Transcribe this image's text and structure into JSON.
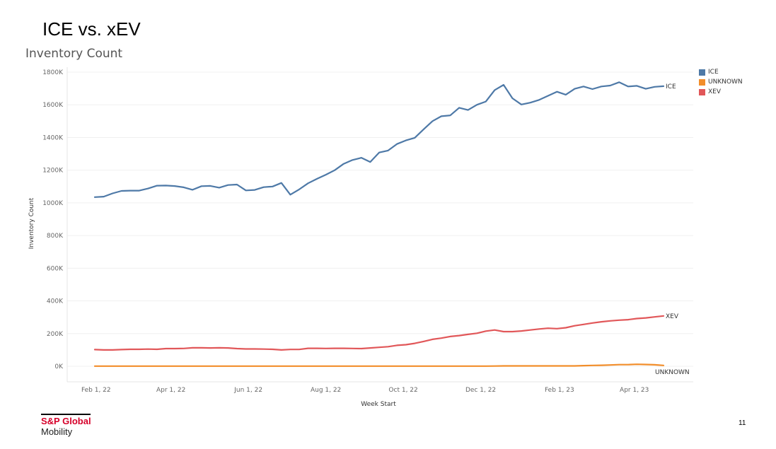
{
  "slide": {
    "title": "ICE vs. xEV",
    "page_number": "11",
    "brand_name": "S&P Global",
    "brand_sub": "Mobility"
  },
  "chart_data": {
    "type": "line",
    "title": "Inventory Count",
    "xlabel": "Week Start",
    "ylabel": "Inventory Count",
    "ylim": [
      0,
      1800000
    ],
    "y_ticks": [
      0,
      200000,
      400000,
      600000,
      800000,
      1000000,
      1200000,
      1400000,
      1600000,
      1800000
    ],
    "y_tick_labels": [
      "0K",
      "200K",
      "400K",
      "600K",
      "800K",
      "1000K",
      "1200K",
      "1400K",
      "1600K",
      "1800K"
    ],
    "x_tick_labels": [
      "Feb 1, 22",
      "Apr 1, 22",
      "Jun 1, 22",
      "Aug 1, 22",
      "Oct 1, 22",
      "Dec 1, 22",
      "Feb 1, 23",
      "Apr 1, 23"
    ],
    "grid": true,
    "legend_position": "right",
    "x": [
      "2022-01-31",
      "2022-02-07",
      "2022-02-14",
      "2022-02-21",
      "2022-02-28",
      "2022-03-07",
      "2022-03-14",
      "2022-03-21",
      "2022-03-28",
      "2022-04-04",
      "2022-04-11",
      "2022-04-18",
      "2022-04-25",
      "2022-05-02",
      "2022-05-09",
      "2022-05-16",
      "2022-05-23",
      "2022-05-30",
      "2022-06-06",
      "2022-06-13",
      "2022-06-20",
      "2022-06-27",
      "2022-07-04",
      "2022-07-11",
      "2022-07-18",
      "2022-07-25",
      "2022-08-01",
      "2022-08-08",
      "2022-08-15",
      "2022-08-22",
      "2022-08-29",
      "2022-09-05",
      "2022-09-12",
      "2022-09-19",
      "2022-09-26",
      "2022-10-03",
      "2022-10-10",
      "2022-10-17",
      "2022-10-24",
      "2022-10-31",
      "2022-11-07",
      "2022-11-14",
      "2022-11-21",
      "2022-11-28",
      "2022-12-05",
      "2022-12-12",
      "2022-12-19",
      "2022-12-26",
      "2023-01-02",
      "2023-01-09",
      "2023-01-16",
      "2023-01-23",
      "2023-01-30",
      "2023-02-06",
      "2023-02-13",
      "2023-02-20",
      "2023-02-27",
      "2023-03-06",
      "2023-03-13",
      "2023-03-20",
      "2023-03-27",
      "2023-04-03",
      "2023-04-10",
      "2023-04-17",
      "2023-04-24"
    ],
    "series": [
      {
        "name": "ICE",
        "color": "#4e79a7",
        "end_label": "ICE",
        "values": [
          1035000,
          1038000,
          1058000,
          1073000,
          1075000,
          1075000,
          1088000,
          1105000,
          1106000,
          1103000,
          1095000,
          1080000,
          1102000,
          1104000,
          1093000,
          1109000,
          1112000,
          1076000,
          1079000,
          1096000,
          1100000,
          1122000,
          1050000,
          1082000,
          1120000,
          1147000,
          1172000,
          1200000,
          1239000,
          1262000,
          1276000,
          1250000,
          1308000,
          1320000,
          1360000,
          1382000,
          1398000,
          1450000,
          1500000,
          1530000,
          1535000,
          1582000,
          1568000,
          1600000,
          1620000,
          1690000,
          1722000,
          1640000,
          1602000,
          1613000,
          1630000,
          1655000,
          1680000,
          1662000,
          1698000,
          1712000,
          1696000,
          1712000,
          1718000,
          1738000,
          1712000,
          1716000,
          1698000,
          1710000,
          1714000
        ]
      },
      {
        "name": "UNKNOWN",
        "color": "#f28e2b",
        "end_label": "UNKNOWN",
        "values": [
          1000,
          1000,
          1000,
          1000,
          1000,
          1000,
          1000,
          1000,
          1000,
          1000,
          1000,
          1000,
          1000,
          1000,
          1000,
          1000,
          1000,
          1000,
          1000,
          1000,
          1000,
          1000,
          1000,
          1000,
          1000,
          1000,
          1000,
          1000,
          1000,
          1000,
          1000,
          1000,
          1000,
          1000,
          1000,
          1000,
          1000,
          1000,
          1000,
          1000,
          1000,
          1000,
          1000,
          1000,
          1000,
          1500,
          2000,
          2000,
          2000,
          2000,
          2000,
          2000,
          2000,
          2000,
          2000,
          4000,
          5000,
          6000,
          8000,
          10000,
          10000,
          12000,
          11000,
          9000,
          5000
        ]
      },
      {
        "name": "XEV",
        "color": "#e15759",
        "end_label": "XEV",
        "values": [
          102000,
          100000,
          100000,
          102000,
          104000,
          104000,
          105000,
          104000,
          108000,
          108000,
          109000,
          113000,
          113000,
          112000,
          113000,
          112000,
          108000,
          106000,
          106000,
          105000,
          104000,
          100000,
          103000,
          103000,
          110000,
          110000,
          109000,
          110000,
          110000,
          109000,
          108000,
          112000,
          116000,
          120000,
          128000,
          132000,
          140000,
          152000,
          165000,
          172000,
          182000,
          188000,
          195000,
          202000,
          215000,
          222000,
          212000,
          212000,
          216000,
          222000,
          228000,
          233000,
          230000,
          236000,
          248000,
          256000,
          265000,
          272000,
          278000,
          282000,
          285000,
          292000,
          296000,
          302000,
          308000
        ]
      }
    ]
  }
}
